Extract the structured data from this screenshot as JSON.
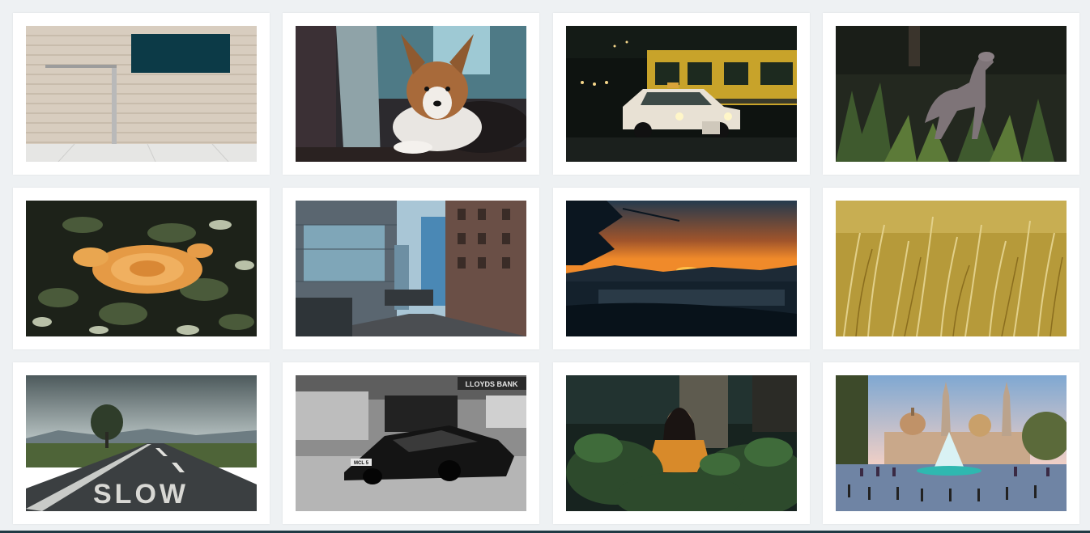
{
  "gallery": {
    "photos": [
      {
        "subject": "brick wall with dark window and metal pole",
        "icon": "architecture-photo"
      },
      {
        "subject": "corgi dog lying by curtain",
        "icon": "dog-photo"
      },
      {
        "subject": "vintage white taxi at night by yellow tram",
        "icon": "taxi-photo"
      },
      {
        "subject": "grey hound dog in tall grass",
        "icon": "hound-photo"
      },
      {
        "subject": "orange rose among dark leaves",
        "icon": "rose-photo"
      },
      {
        "subject": "city street between tall buildings",
        "icon": "city-street-photo"
      },
      {
        "subject": "sunset over mountains and lake",
        "icon": "sunset-photo"
      },
      {
        "subject": "golden wheat field",
        "icon": "wheat-photo"
      },
      {
        "subject": "road with SLOW painted on asphalt",
        "icon": "slow-road-photo"
      },
      {
        "subject": "black sports car on city street in black and white",
        "icon": "sports-car-photo"
      },
      {
        "subject": "woman behind green leaves",
        "icon": "portrait-photo"
      },
      {
        "subject": "cathedral with fountain and plaza",
        "icon": "cathedral-photo"
      }
    ],
    "texts": {
      "slow_marking": "SLOW",
      "bank_sign": "LLOYDS BANK",
      "plate_text": "MCL 5"
    }
  },
  "colors": {
    "background": "#eef1f3",
    "card": "#ffffff",
    "bottom_strip": "#1f3a44"
  }
}
